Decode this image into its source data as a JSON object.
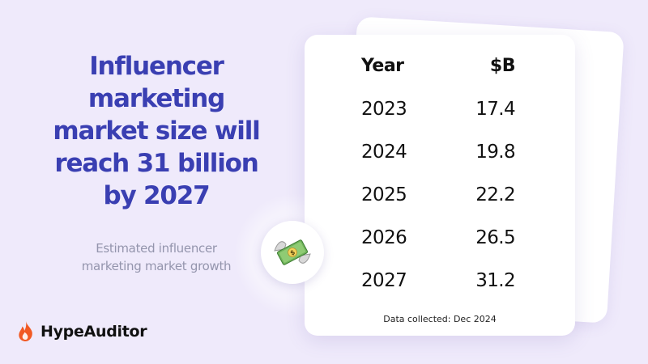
{
  "headline": "Influencer\nmarketing\nmarket size will\nreach 31 billion\nby 2027",
  "subtitle": "Estimated influencer\nmarketing market growth",
  "brand": {
    "name": "HypeAuditor",
    "logo_icon": "flame-icon",
    "logo_color": "#f15a24"
  },
  "accent_color": "#3a3fb2",
  "decor_icon": "money-with-wings-icon",
  "table": {
    "headers": {
      "year": "Year",
      "value": "$B"
    },
    "rows": [
      {
        "year": "2023",
        "value": "17.4"
      },
      {
        "year": "2024",
        "value": "19.8"
      },
      {
        "year": "2025",
        "value": "22.2"
      },
      {
        "year": "2026",
        "value": "26.5"
      },
      {
        "year": "2027",
        "value": "31.2"
      }
    ],
    "note": "Data collected:  Dec 2024"
  }
}
